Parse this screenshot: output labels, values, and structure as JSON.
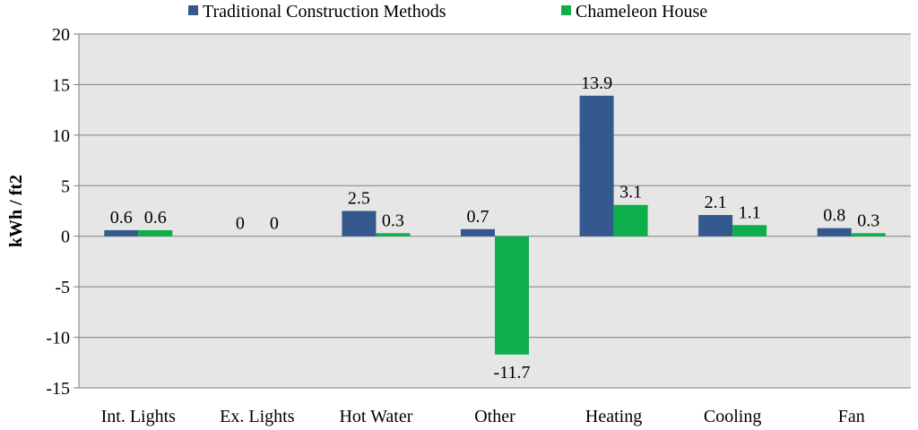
{
  "chart_data": {
    "type": "bar",
    "title": "",
    "xlabel": "",
    "ylabel": "kWh / ft2",
    "ylim": [
      -15,
      20
    ],
    "yticks": [
      -15,
      -10,
      -5,
      0,
      5,
      10,
      15,
      20
    ],
    "grid": true,
    "legend_position": "top-center",
    "categories": [
      "Int. Lights",
      "Ex. Lights",
      "Hot Water",
      "Other",
      "Heating",
      "Cooling",
      "Fan"
    ],
    "series": [
      {
        "name": "Traditional Construction Methods",
        "color": "#34598F",
        "values": [
          0.6,
          0,
          2.5,
          0.7,
          13.9,
          2.1,
          0.8
        ],
        "labels": [
          "0.6",
          "0",
          "2.5",
          "0.7",
          "13.9",
          "2.1",
          "0.8"
        ]
      },
      {
        "name": "Chameleon House",
        "color": "#0DAF4B",
        "values": [
          0.6,
          0,
          0.3,
          -11.7,
          3.1,
          1.1,
          0.3
        ],
        "labels": [
          "0.6",
          "0",
          "0.3",
          "-11.7",
          "3.1",
          "1.1",
          "0.3"
        ]
      }
    ],
    "plot_background": "#E6E6E6",
    "grid_color": "#7F7F7F"
  }
}
